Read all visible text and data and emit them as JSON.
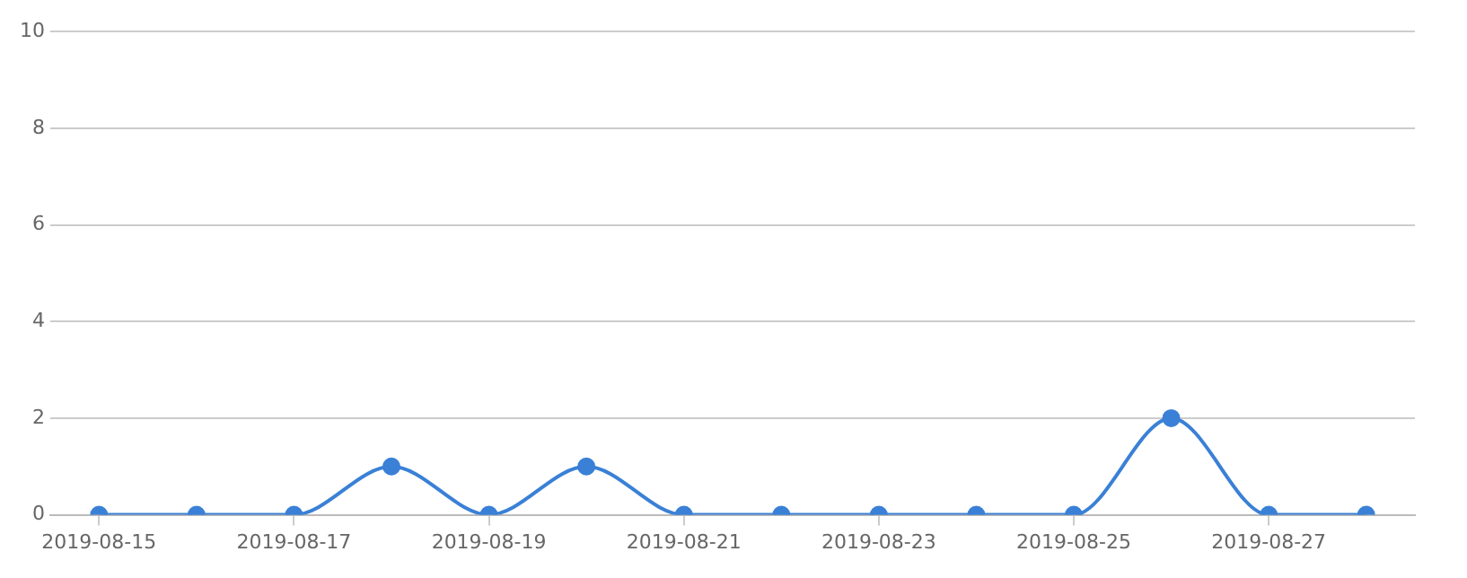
{
  "chart_data": {
    "type": "line",
    "x": [
      "2019-08-15",
      "2019-08-16",
      "2019-08-17",
      "2019-08-18",
      "2019-08-19",
      "2019-08-20",
      "2019-08-21",
      "2019-08-22",
      "2019-08-23",
      "2019-08-24",
      "2019-08-25",
      "2019-08-26",
      "2019-08-27",
      "2019-08-28"
    ],
    "series": [
      {
        "color": "#3a80d6",
        "values": [
          0,
          0,
          0,
          1,
          0,
          1,
          0,
          0,
          0,
          0,
          0,
          2,
          0,
          0
        ]
      }
    ],
    "xlim": [
      "2019-08-14T12:00",
      "2019-08-28T12:00"
    ],
    "xticks": [
      "2019-08-15",
      "2019-08-17",
      "2019-08-19",
      "2019-08-21",
      "2019-08-23",
      "2019-08-25",
      "2019-08-27"
    ],
    "ylim": [
      0,
      10
    ],
    "yticks": [
      0,
      2,
      4,
      6,
      8,
      10
    ],
    "grid": "y",
    "legend": false,
    "marker": "circle",
    "line_style": "solid"
  }
}
